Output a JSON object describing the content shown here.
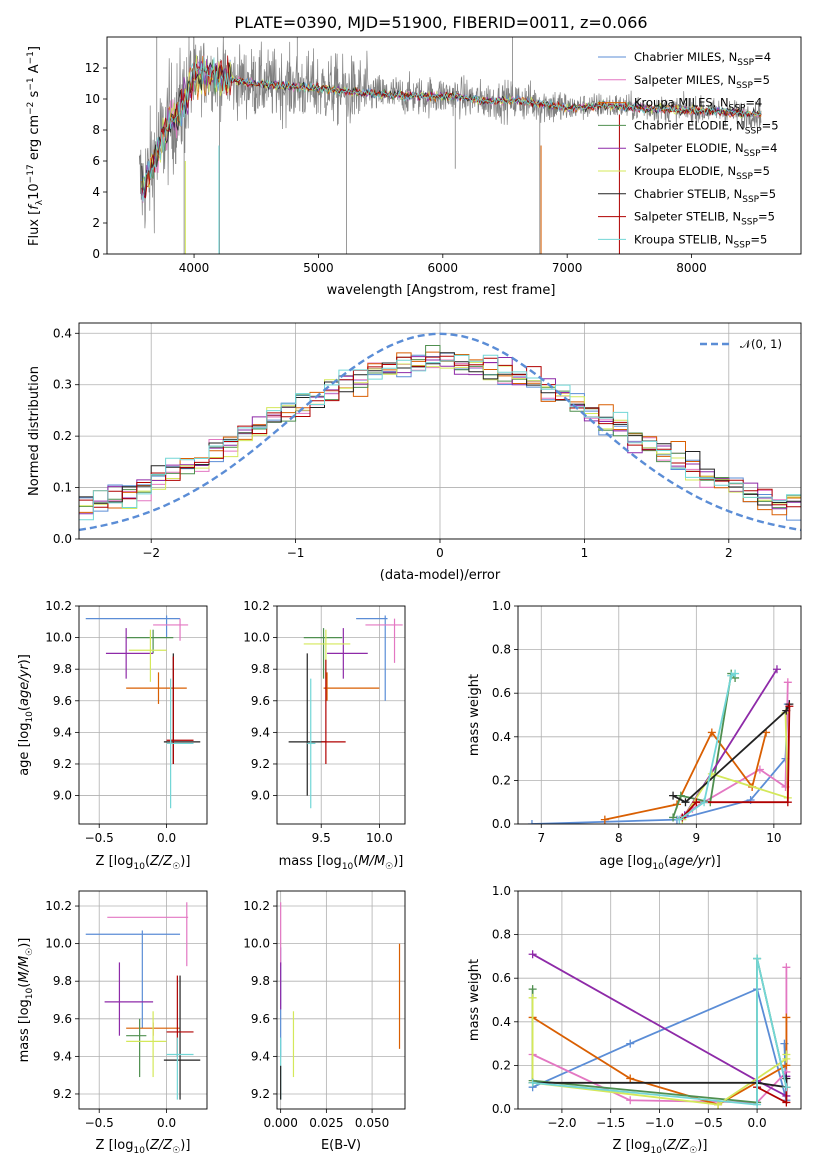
{
  "colors": {
    "chabrier_miles": "#5b8dd6",
    "salpeter_miles": "#e377c2",
    "kroupa_miles": "#d95f02",
    "chabrier_elodie": "#4f8f4f",
    "salpeter_elodie": "#8e2aa8",
    "kroupa_elodie": "#d4e85a",
    "chabrier_stelib": "#222222",
    "salpeter_stelib": "#b00000",
    "kroupa_stelib": "#72d6d6",
    "data_gray": "#808080",
    "normal_dash": "#5b8dd6"
  },
  "chart_data": [
    {
      "id": "spectrum",
      "type": "line",
      "title": "PLATE=0390, MJD=51900, FIBERID=0011, z=0.066",
      "xlabel": "wavelength [Angstrom, rest frame]",
      "ylabel": "Flux [fλ10⁻¹⁷ erg cm⁻² s⁻¹ A⁻¹]",
      "xlim": [
        3300,
        8880
      ],
      "ylim": [
        0,
        14
      ],
      "xticks": [
        "4000",
        "5000",
        "6000",
        "7000",
        "8000"
      ],
      "yticks": [
        "0",
        "2",
        "4",
        "6",
        "8",
        "10",
        "12"
      ],
      "legend_position": "top-right",
      "legend": [
        "Chabrier MILES, N_SSP=4",
        "Salpeter MILES, N_SSP=5",
        "Kroupa MILES, N_SSP=4",
        "Chabrier ELODIE, N_SSP=5",
        "Salpeter ELODIE, N_SSP=4",
        "Kroupa ELODIE, N_SSP=5",
        "Chabrier STELIB, N_SSP=5",
        "Salpeter STELIB, N_SSP=5",
        "Kroupa STELIB, N_SSP=5"
      ],
      "continuum": {
        "x": [
          3600,
          3700,
          3800,
          3900,
          4000,
          4100,
          4300,
          4500,
          4800,
          5000,
          5200,
          5500,
          5800,
          6100,
          6300,
          6600,
          6800,
          7000,
          7300,
          7600,
          7900,
          8200,
          8500
        ],
        "y": [
          4.5,
          6.5,
          8.5,
          9.5,
          11.5,
          11.7,
          11.2,
          11.0,
          10.8,
          10.7,
          10.5,
          10.3,
          10.2,
          10.2,
          9.9,
          9.9,
          9.7,
          9.4,
          9.6,
          9.4,
          9.3,
          9.2,
          9.0
        ]
      }
    },
    {
      "id": "residuals",
      "type": "line",
      "xlabel": "(data-model)/error",
      "ylabel": "Normed distribution",
      "xlim": [
        -2.5,
        2.5
      ],
      "ylim": [
        0,
        0.42
      ],
      "xticks": [
        "−2",
        "−1",
        "0",
        "1",
        "2"
      ],
      "yticks": [
        "0.0",
        "0.1",
        "0.2",
        "0.3",
        "0.4"
      ],
      "grid": true,
      "legend_position": "top-right",
      "normal_label": "𝒩(0, 1)"
    },
    {
      "id": "age_vs_z",
      "type": "scatter",
      "xlabel": "Z [log₁₀(Z/Z☉)]",
      "ylabel": "age  [log₁₀(age/yr)]",
      "xlim": [
        -0.65,
        0.3
      ],
      "ylim": [
        8.82,
        10.2
      ],
      "xticks": [
        "−0.5",
        "0.0"
      ],
      "yticks": [
        "9.0",
        "9.2",
        "9.4",
        "9.6",
        "9.8",
        "10.0",
        "10.2"
      ],
      "grid": true,
      "points": [
        {
          "s": "chabrier_miles",
          "x": 0.0,
          "y": 10.12,
          "xe": [
            -0.6,
            0.1
          ],
          "ye": [
            10.0,
            10.14
          ]
        },
        {
          "s": "salpeter_miles",
          "x": 0.1,
          "y": 10.08,
          "xe": [
            -0.1,
            0.16
          ],
          "ye": [
            9.98,
            10.12
          ]
        },
        {
          "s": "kroupa_miles",
          "x": -0.06,
          "y": 9.68,
          "xe": [
            -0.3,
            0.15
          ],
          "ye": [
            9.58,
            9.78
          ]
        },
        {
          "s": "chabrier_elodie",
          "x": -0.1,
          "y": 10.0,
          "xe": [
            -0.3,
            0.05
          ],
          "ye": [
            9.9,
            10.05
          ]
        },
        {
          "s": "salpeter_elodie",
          "x": -0.3,
          "y": 9.9,
          "xe": [
            -0.45,
            -0.1
          ],
          "ye": [
            9.74,
            10.06
          ]
        },
        {
          "s": "kroupa_elodie",
          "x": -0.12,
          "y": 9.92,
          "xe": [
            -0.28,
            0.0
          ],
          "ye": [
            9.72,
            10.05
          ]
        },
        {
          "s": "chabrier_stelib",
          "x": 0.05,
          "y": 9.34,
          "xe": [
            -0.02,
            0.25
          ],
          "ye": [
            9.2,
            9.9
          ]
        },
        {
          "s": "salpeter_stelib",
          "x": 0.05,
          "y": 9.35,
          "xe": [
            0.0,
            0.2
          ],
          "ye": [
            9.2,
            9.88
          ]
        },
        {
          "s": "kroupa_stelib",
          "x": 0.03,
          "y": 9.33,
          "xe": [
            0.0,
            0.2
          ],
          "ye": [
            8.92,
            9.74
          ]
        }
      ]
    },
    {
      "id": "age_vs_mass",
      "type": "scatter",
      "xlabel": "mass [log₁₀(M/M☉)]",
      "xlim": [
        9.12,
        10.22
      ],
      "ylim": [
        8.82,
        10.2
      ],
      "xticks": [
        "9.5",
        "10.0"
      ],
      "yticks": [
        "9.0",
        "9.2",
        "9.4",
        "9.6",
        "9.8",
        "10.0",
        "10.2"
      ],
      "grid": true,
      "points": [
        {
          "s": "chabrier_miles",
          "x": 10.05,
          "y": 10.12,
          "xe": [
            9.8,
            10.07
          ],
          "ye": [
            9.6,
            10.14
          ]
        },
        {
          "s": "salpeter_miles",
          "x": 10.13,
          "y": 10.08,
          "xe": [
            9.88,
            10.2
          ],
          "ye": [
            9.84,
            10.12
          ]
        },
        {
          "s": "kroupa_miles",
          "x": 9.55,
          "y": 9.68,
          "xe": [
            9.52,
            10.0
          ],
          "ye": [
            9.6,
            9.78
          ]
        },
        {
          "s": "chabrier_elodie",
          "x": 9.52,
          "y": 10.0,
          "xe": [
            9.35,
            9.68
          ],
          "ye": [
            9.74,
            10.06
          ]
        },
        {
          "s": "salpeter_elodie",
          "x": 9.69,
          "y": 9.9,
          "xe": [
            9.55,
            9.9
          ],
          "ye": [
            9.74,
            10.06
          ]
        },
        {
          "s": "kroupa_elodie",
          "x": 9.54,
          "y": 9.96,
          "xe": [
            9.35,
            9.75
          ],
          "ye": [
            9.74,
            10.05
          ]
        },
        {
          "s": "chabrier_stelib",
          "x": 9.38,
          "y": 9.34,
          "xe": [
            9.22,
            9.54
          ],
          "ye": [
            9.0,
            9.9
          ]
        },
        {
          "s": "salpeter_stelib",
          "x": 9.54,
          "y": 9.34,
          "xe": [
            9.5,
            9.71
          ],
          "ye": [
            9.2,
            9.86
          ]
        },
        {
          "s": "kroupa_stelib",
          "x": 9.41,
          "y": 9.33,
          "xe": [
            9.38,
            9.45
          ],
          "ye": [
            8.92,
            9.74
          ]
        }
      ]
    },
    {
      "id": "mass_weight_vs_age",
      "type": "line",
      "xlabel": "age  [log₁₀(age/yr)]",
      "ylabel": "mass weight",
      "xlim": [
        6.7,
        10.35
      ],
      "ylim": [
        0,
        1
      ],
      "xticks": [
        "7",
        "8",
        "9",
        "10"
      ],
      "yticks": [
        "0.0",
        "0.2",
        "0.4",
        "0.6",
        "0.8",
        "1.0"
      ],
      "grid": true,
      "series": [
        {
          "s": "chabrier_miles",
          "x": [
            6.88,
            8.75,
            9.7,
            10.15,
            10.18
          ],
          "y": [
            0.0,
            0.02,
            0.11,
            0.3,
            0.55
          ]
        },
        {
          "s": "salpeter_miles",
          "x": [
            8.82,
            8.95,
            9.82,
            10.15,
            10.18
          ],
          "y": [
            0.03,
            0.07,
            0.25,
            0.17,
            0.65
          ]
        },
        {
          "s": "kroupa_miles",
          "x": [
            7.82,
            8.75,
            9.2,
            9.72,
            9.9
          ],
          "y": [
            0.02,
            0.09,
            0.42,
            0.17,
            0.42
          ]
        },
        {
          "s": "chabrier_elodie",
          "x": [
            8.7,
            8.8,
            9.18,
            9.45,
            9.5
          ],
          "y": [
            0.03,
            0.13,
            0.1,
            0.69,
            0.67
          ]
        },
        {
          "s": "salpeter_elodie",
          "x": [
            8.85,
            10.04
          ],
          "y": [
            0.04,
            0.71
          ]
        },
        {
          "s": "kroupa_elodie",
          "x": [
            8.82,
            9.2,
            10.18,
            10.15
          ],
          "y": [
            0.02,
            0.23,
            0.12,
            0.51
          ]
        },
        {
          "s": "chabrier_stelib",
          "x": [
            8.7,
            8.86,
            10.16,
            10.2
          ],
          "y": [
            0.13,
            0.1,
            0.52,
            0.55
          ]
        },
        {
          "s": "salpeter_stelib",
          "x": [
            8.82,
            9.0,
            10.18,
            10.2
          ],
          "y": [
            0.03,
            0.1,
            0.1,
            0.54
          ]
        },
        {
          "s": "kroupa_stelib",
          "x": [
            8.78,
            9.1,
            9.45,
            9.5
          ],
          "y": [
            0.02,
            0.1,
            0.68,
            0.69
          ]
        }
      ]
    },
    {
      "id": "mass_vs_z",
      "type": "scatter",
      "xlabel": "Z [log₁₀(Z/Z☉)]",
      "ylabel": "mass [log₁₀(M/M☉)]",
      "xlim": [
        -0.65,
        0.3
      ],
      "ylim": [
        9.12,
        10.28
      ],
      "xticks": [
        "−0.5",
        "0.0"
      ],
      "yticks": [
        "9.2",
        "9.4",
        "9.6",
        "9.8",
        "10.0",
        "10.2"
      ],
      "grid": true,
      "points": [
        {
          "s": "chabrier_miles",
          "x": -0.18,
          "y": 10.05,
          "xe": [
            -0.6,
            0.1
          ],
          "ye": [
            9.55,
            10.07
          ]
        },
        {
          "s": "salpeter_miles",
          "x": 0.15,
          "y": 10.14,
          "xe": [
            -0.44,
            0.16
          ],
          "ye": [
            9.88,
            10.22
          ]
        },
        {
          "s": "kroupa_miles",
          "x": -0.1,
          "y": 9.55,
          "xe": [
            -0.3,
            0.1
          ],
          "ye": [
            9.51,
            9.58
          ]
        },
        {
          "s": "chabrier_elodie",
          "x": -0.2,
          "y": 9.51,
          "xe": [
            -0.3,
            -0.15
          ],
          "ye": [
            9.29,
            9.6
          ]
        },
        {
          "s": "salpeter_elodie",
          "x": -0.35,
          "y": 9.69,
          "xe": [
            -0.46,
            -0.1
          ],
          "ye": [
            9.51,
            9.9
          ]
        },
        {
          "s": "kroupa_elodie",
          "x": -0.1,
          "y": 9.48,
          "xe": [
            -0.3,
            0.0
          ],
          "ye": [
            9.29,
            9.64
          ]
        },
        {
          "s": "chabrier_stelib",
          "x": 0.1,
          "y": 9.38,
          "xe": [
            -0.02,
            0.25
          ],
          "ye": [
            9.17,
            9.83
          ]
        },
        {
          "s": "salpeter_stelib",
          "x": 0.08,
          "y": 9.53,
          "xe": [
            0.0,
            0.2
          ],
          "ye": [
            9.4,
            9.83
          ]
        },
        {
          "s": "kroupa_stelib",
          "x": 0.08,
          "y": 9.41,
          "xe": [
            0.0,
            0.2
          ],
          "ye": [
            9.17,
            9.5
          ]
        }
      ]
    },
    {
      "id": "mass_vs_ebv",
      "type": "scatter",
      "xlabel": "E(B-V)",
      "xlim": [
        -0.002,
        0.068
      ],
      "ylim": [
        9.12,
        10.28
      ],
      "xticks": [
        "0.000",
        "0.025",
        "0.050"
      ],
      "yticks": [
        "9.2",
        "9.4",
        "9.6",
        "9.8",
        "10.0",
        "10.2"
      ],
      "grid": true,
      "points": [
        {
          "s": "chabrier_miles",
          "x": 0.0,
          "y": 9.6,
          "ye": [
            9.4,
            9.98
          ]
        },
        {
          "s": "salpeter_miles",
          "x": 0.0,
          "y": 10.05,
          "ye": [
            9.88,
            10.22
          ]
        },
        {
          "s": "kroupa_miles",
          "x": 0.065,
          "y": 9.7,
          "ye": [
            9.44,
            10.0
          ]
        },
        {
          "s": "salpeter_elodie",
          "x": 0.0,
          "y": 9.8,
          "ye": [
            9.65,
            9.9
          ]
        },
        {
          "s": "kroupa_elodie",
          "x": 0.007,
          "y": 9.4,
          "ye": [
            9.29,
            9.64
          ]
        },
        {
          "s": "kroupa_stelib",
          "x": 0.0,
          "y": 9.3,
          "ye": [
            9.17,
            9.5
          ]
        },
        {
          "s": "chabrier_stelib",
          "x": 0.0,
          "y": 9.25,
          "ye": [
            9.17,
            9.35
          ]
        }
      ]
    },
    {
      "id": "mass_weight_vs_z",
      "type": "line",
      "xlabel": "Z [log₁₀(Z/Z☉)]",
      "ylabel": "mass weight",
      "xlim": [
        -2.45,
        0.45
      ],
      "ylim": [
        0,
        1
      ],
      "xticks": [
        "−2.0",
        "−1.5",
        "−1.0",
        "−0.5",
        "0.0"
      ],
      "yticks": [
        "0.0",
        "0.2",
        "0.4",
        "0.6",
        "0.8",
        "1.0"
      ],
      "grid": true,
      "series": [
        {
          "s": "chabrier_miles",
          "x": [
            -2.3,
            -1.3,
            0.0,
            0.3,
            0.28
          ],
          "y": [
            0.1,
            0.3,
            0.55,
            0.04,
            0.3
          ]
        },
        {
          "s": "salpeter_miles",
          "x": [
            -2.3,
            -1.3,
            0.0,
            0.3,
            0.3
          ],
          "y": [
            0.25,
            0.04,
            0.03,
            0.17,
            0.65
          ]
        },
        {
          "s": "kroupa_miles",
          "x": [
            -2.3,
            -1.3,
            -0.4,
            0.3,
            0.3
          ],
          "y": [
            0.42,
            0.14,
            0.02,
            0.2,
            0.42
          ]
        },
        {
          "s": "chabrier_elodie",
          "x": [
            -2.3,
            -2.3,
            0.0,
            0.0,
            0.3
          ],
          "y": [
            0.55,
            0.13,
            0.03,
            0.69,
            0.1
          ]
        },
        {
          "s": "salpeter_elodie",
          "x": [
            -2.3,
            0.0,
            0.3,
            0.3
          ],
          "y": [
            0.71,
            0.13,
            0.06,
            0.15
          ]
        },
        {
          "s": "kroupa_elodie",
          "x": [
            -2.3,
            -2.3,
            -0.4,
            0.3,
            0.3
          ],
          "y": [
            0.51,
            0.12,
            0.02,
            0.23,
            0.25
          ]
        },
        {
          "s": "chabrier_stelib",
          "x": [
            -2.3,
            0.0,
            0.3,
            0.3
          ],
          "y": [
            0.12,
            0.12,
            0.1,
            0.14
          ]
        },
        {
          "s": "salpeter_stelib",
          "x": [
            0.0,
            0.3,
            0.3
          ],
          "y": [
            0.1,
            0.03,
            0.1
          ]
        },
        {
          "s": "kroupa_stelib",
          "x": [
            -2.3,
            0.0,
            0.0,
            0.3
          ],
          "y": [
            0.12,
            0.02,
            0.69,
            0.1
          ]
        }
      ]
    }
  ]
}
